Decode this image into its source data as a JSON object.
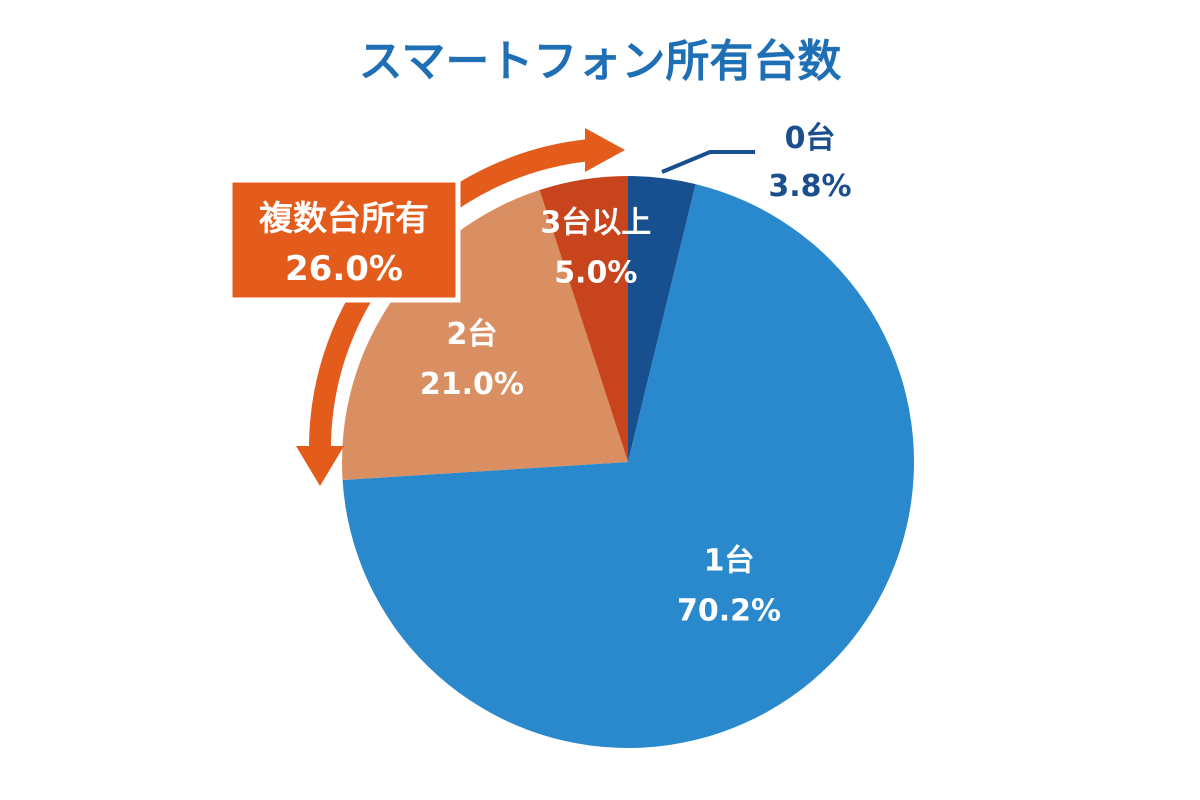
{
  "chart_data": {
    "type": "pie",
    "title": "スマートフォン所有台数",
    "slices": [
      {
        "category": "0台",
        "value": 3.8,
        "value_label": "3.8%",
        "color": "#174f8f"
      },
      {
        "category": "1台",
        "value": 70.2,
        "value_label": "70.2%",
        "color": "#2a89cd"
      },
      {
        "category": "2台",
        "value": 21.0,
        "value_label": "21.0%",
        "color": "#d98f62"
      },
      {
        "category": "3台以上",
        "value": 5.0,
        "value_label": "5.0%",
        "color": "#c8441d"
      }
    ],
    "start_angle_deg": 0,
    "direction": "clockwise",
    "annotation": {
      "line1": "複数台所有",
      "line2": "26.0%",
      "color": "#e45c1c"
    }
  }
}
